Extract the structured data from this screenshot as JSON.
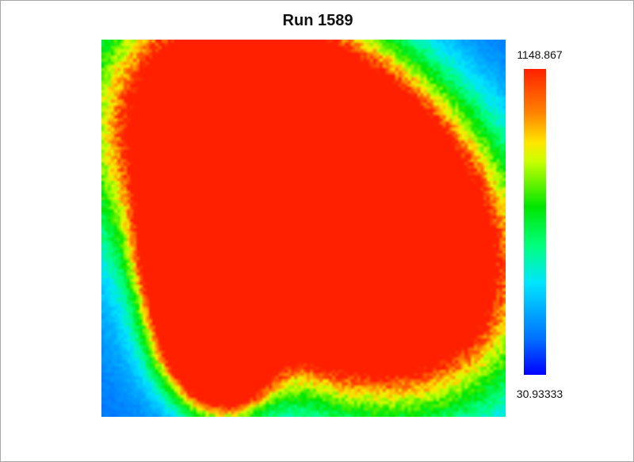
{
  "chart_data": {
    "type": "heatmap",
    "title": "Run 1589",
    "xlabel": "",
    "ylabel": "",
    "colorbar": {
      "max": "1148.867",
      "min": "30.93333",
      "colormap": [
        "#0000ff",
        "#0072ff",
        "#00e5ff",
        "#00ff80",
        "#00e600",
        "#ccff00",
        "#ffe600",
        "#ff8000",
        "#ff2000"
      ]
    },
    "grid_size": [
      128,
      120
    ],
    "background_level": 120,
    "saturation_level": 1148.867
  }
}
